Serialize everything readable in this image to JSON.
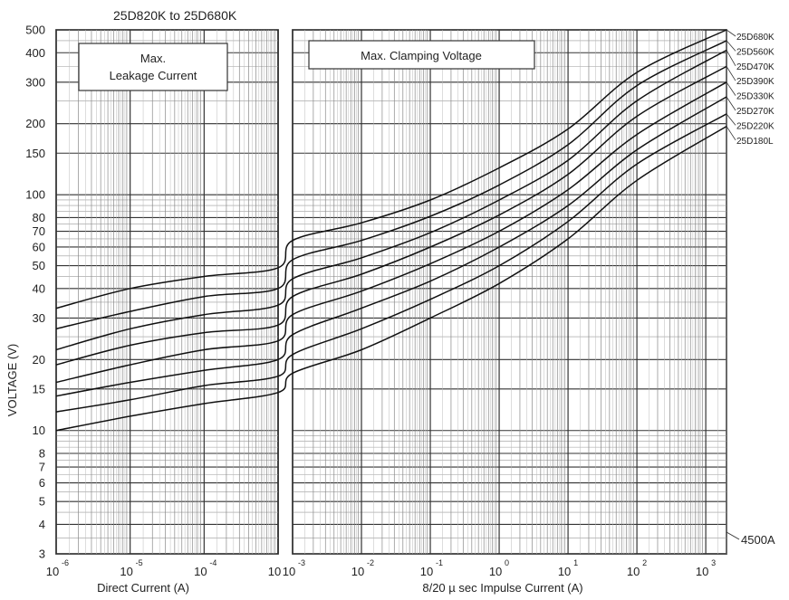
{
  "chart_data": {
    "type": "line",
    "title": "25D820K to 25D680K",
    "ylabel": "VOLTAGE (V)",
    "yscale": "log",
    "ylim": [
      3,
      500
    ],
    "y_ticks": [
      3,
      4,
      5,
      6,
      7,
      8,
      10,
      15,
      20,
      30,
      40,
      50,
      60,
      70,
      80,
      100,
      150,
      200,
      300,
      400,
      500
    ],
    "grid": true,
    "panels": [
      {
        "name": "left",
        "xlabel": "Direct Current  (A)",
        "xscale": "log",
        "xlim": [
          1e-06,
          0.001
        ],
        "box_label": [
          "Max.",
          "Leakage  Current"
        ],
        "x_ticks": [
          {
            "base": "10",
            "exp": "-6"
          },
          {
            "base": "10",
            "exp": "-5"
          },
          {
            "base": "10",
            "exp": "-4"
          },
          {
            "base": "10",
            "exp": ""
          }
        ]
      },
      {
        "name": "right",
        "xlabel": "8/20 µ sec Impulse Current (A)",
        "xscale": "log",
        "xlim": [
          0.001,
          2000
        ],
        "box_label": [
          "Max.  Clamping  Voltage"
        ],
        "x_ticks": [
          {
            "base": "10",
            "exp": "-3"
          },
          {
            "base": "10",
            "exp": "-2"
          },
          {
            "base": "10",
            "exp": "-1"
          },
          {
            "base": "10",
            "exp": "0"
          },
          {
            "base": "10",
            "exp": "1"
          },
          {
            "base": "10",
            "exp": "2"
          },
          {
            "base": "10",
            "exp": "3"
          }
        ]
      }
    ],
    "series": [
      {
        "name": "25D680K",
        "left": [
          [
            1e-06,
            33
          ],
          [
            1e-05,
            40
          ],
          [
            0.0001,
            45
          ],
          [
            0.001,
            49
          ]
        ],
        "right": [
          [
            0.001,
            64
          ],
          [
            0.01,
            76
          ],
          [
            0.1,
            95
          ],
          [
            1,
            130
          ],
          [
            10,
            190
          ],
          [
            100,
            330
          ],
          [
            2000,
            500
          ]
        ]
      },
      {
        "name": "25D560K",
        "left": [
          [
            1e-06,
            27
          ],
          [
            1e-05,
            32
          ],
          [
            0.0001,
            37
          ],
          [
            0.001,
            40
          ]
        ],
        "right": [
          [
            0.001,
            53
          ],
          [
            0.01,
            64
          ],
          [
            0.1,
            81
          ],
          [
            1,
            110
          ],
          [
            10,
            163
          ],
          [
            100,
            290
          ],
          [
            2000,
            450
          ]
        ]
      },
      {
        "name": "25D470K",
        "left": [
          [
            1e-06,
            22
          ],
          [
            1e-05,
            27
          ],
          [
            0.0001,
            31
          ],
          [
            0.001,
            34
          ]
        ],
        "right": [
          [
            0.001,
            44
          ],
          [
            0.01,
            54
          ],
          [
            0.1,
            69
          ],
          [
            1,
            95
          ],
          [
            10,
            140
          ],
          [
            100,
            250
          ],
          [
            2000,
            410
          ]
        ]
      },
      {
        "name": "25D390K",
        "left": [
          [
            1e-06,
            19
          ],
          [
            1e-05,
            23
          ],
          [
            0.0001,
            26
          ],
          [
            0.001,
            28
          ]
        ],
        "right": [
          [
            0.001,
            37
          ],
          [
            0.01,
            46
          ],
          [
            0.1,
            60
          ],
          [
            1,
            82
          ],
          [
            10,
            122
          ],
          [
            100,
            215
          ],
          [
            2000,
            350
          ]
        ]
      },
      {
        "name": "25D330K",
        "left": [
          [
            1e-06,
            16
          ],
          [
            1e-05,
            19
          ],
          [
            0.0001,
            22
          ],
          [
            0.001,
            24
          ]
        ],
        "right": [
          [
            0.001,
            31
          ],
          [
            0.01,
            39
          ],
          [
            0.1,
            51
          ],
          [
            1,
            70
          ],
          [
            10,
            105
          ],
          [
            100,
            180
          ],
          [
            2000,
            300
          ]
        ]
      },
      {
        "name": "25D270K",
        "left": [
          [
            1e-06,
            14
          ],
          [
            1e-05,
            16
          ],
          [
            0.0001,
            18
          ],
          [
            0.001,
            20
          ]
        ],
        "right": [
          [
            0.001,
            25.5
          ],
          [
            0.01,
            33
          ],
          [
            0.1,
            43
          ],
          [
            1,
            60
          ],
          [
            10,
            90
          ],
          [
            100,
            155
          ],
          [
            2000,
            260
          ]
        ]
      },
      {
        "name": "25D220K",
        "left": [
          [
            1e-06,
            12
          ],
          [
            1e-05,
            13.5
          ],
          [
            0.0001,
            15.5
          ],
          [
            0.001,
            17
          ]
        ],
        "right": [
          [
            0.001,
            21
          ],
          [
            0.01,
            27
          ],
          [
            0.1,
            36
          ],
          [
            1,
            50
          ],
          [
            10,
            77
          ],
          [
            100,
            135
          ],
          [
            2000,
            220
          ]
        ]
      },
      {
        "name": "25D180L",
        "left": [
          [
            1e-06,
            10
          ],
          [
            1e-05,
            11.5
          ],
          [
            0.0001,
            13
          ],
          [
            0.001,
            14.5
          ]
        ],
        "right": [
          [
            0.001,
            17.5
          ],
          [
            0.01,
            22
          ],
          [
            0.1,
            30
          ],
          [
            1,
            42
          ],
          [
            10,
            65
          ],
          [
            100,
            115
          ],
          [
            2000,
            195
          ]
        ]
      }
    ],
    "annotation": "4500A"
  }
}
